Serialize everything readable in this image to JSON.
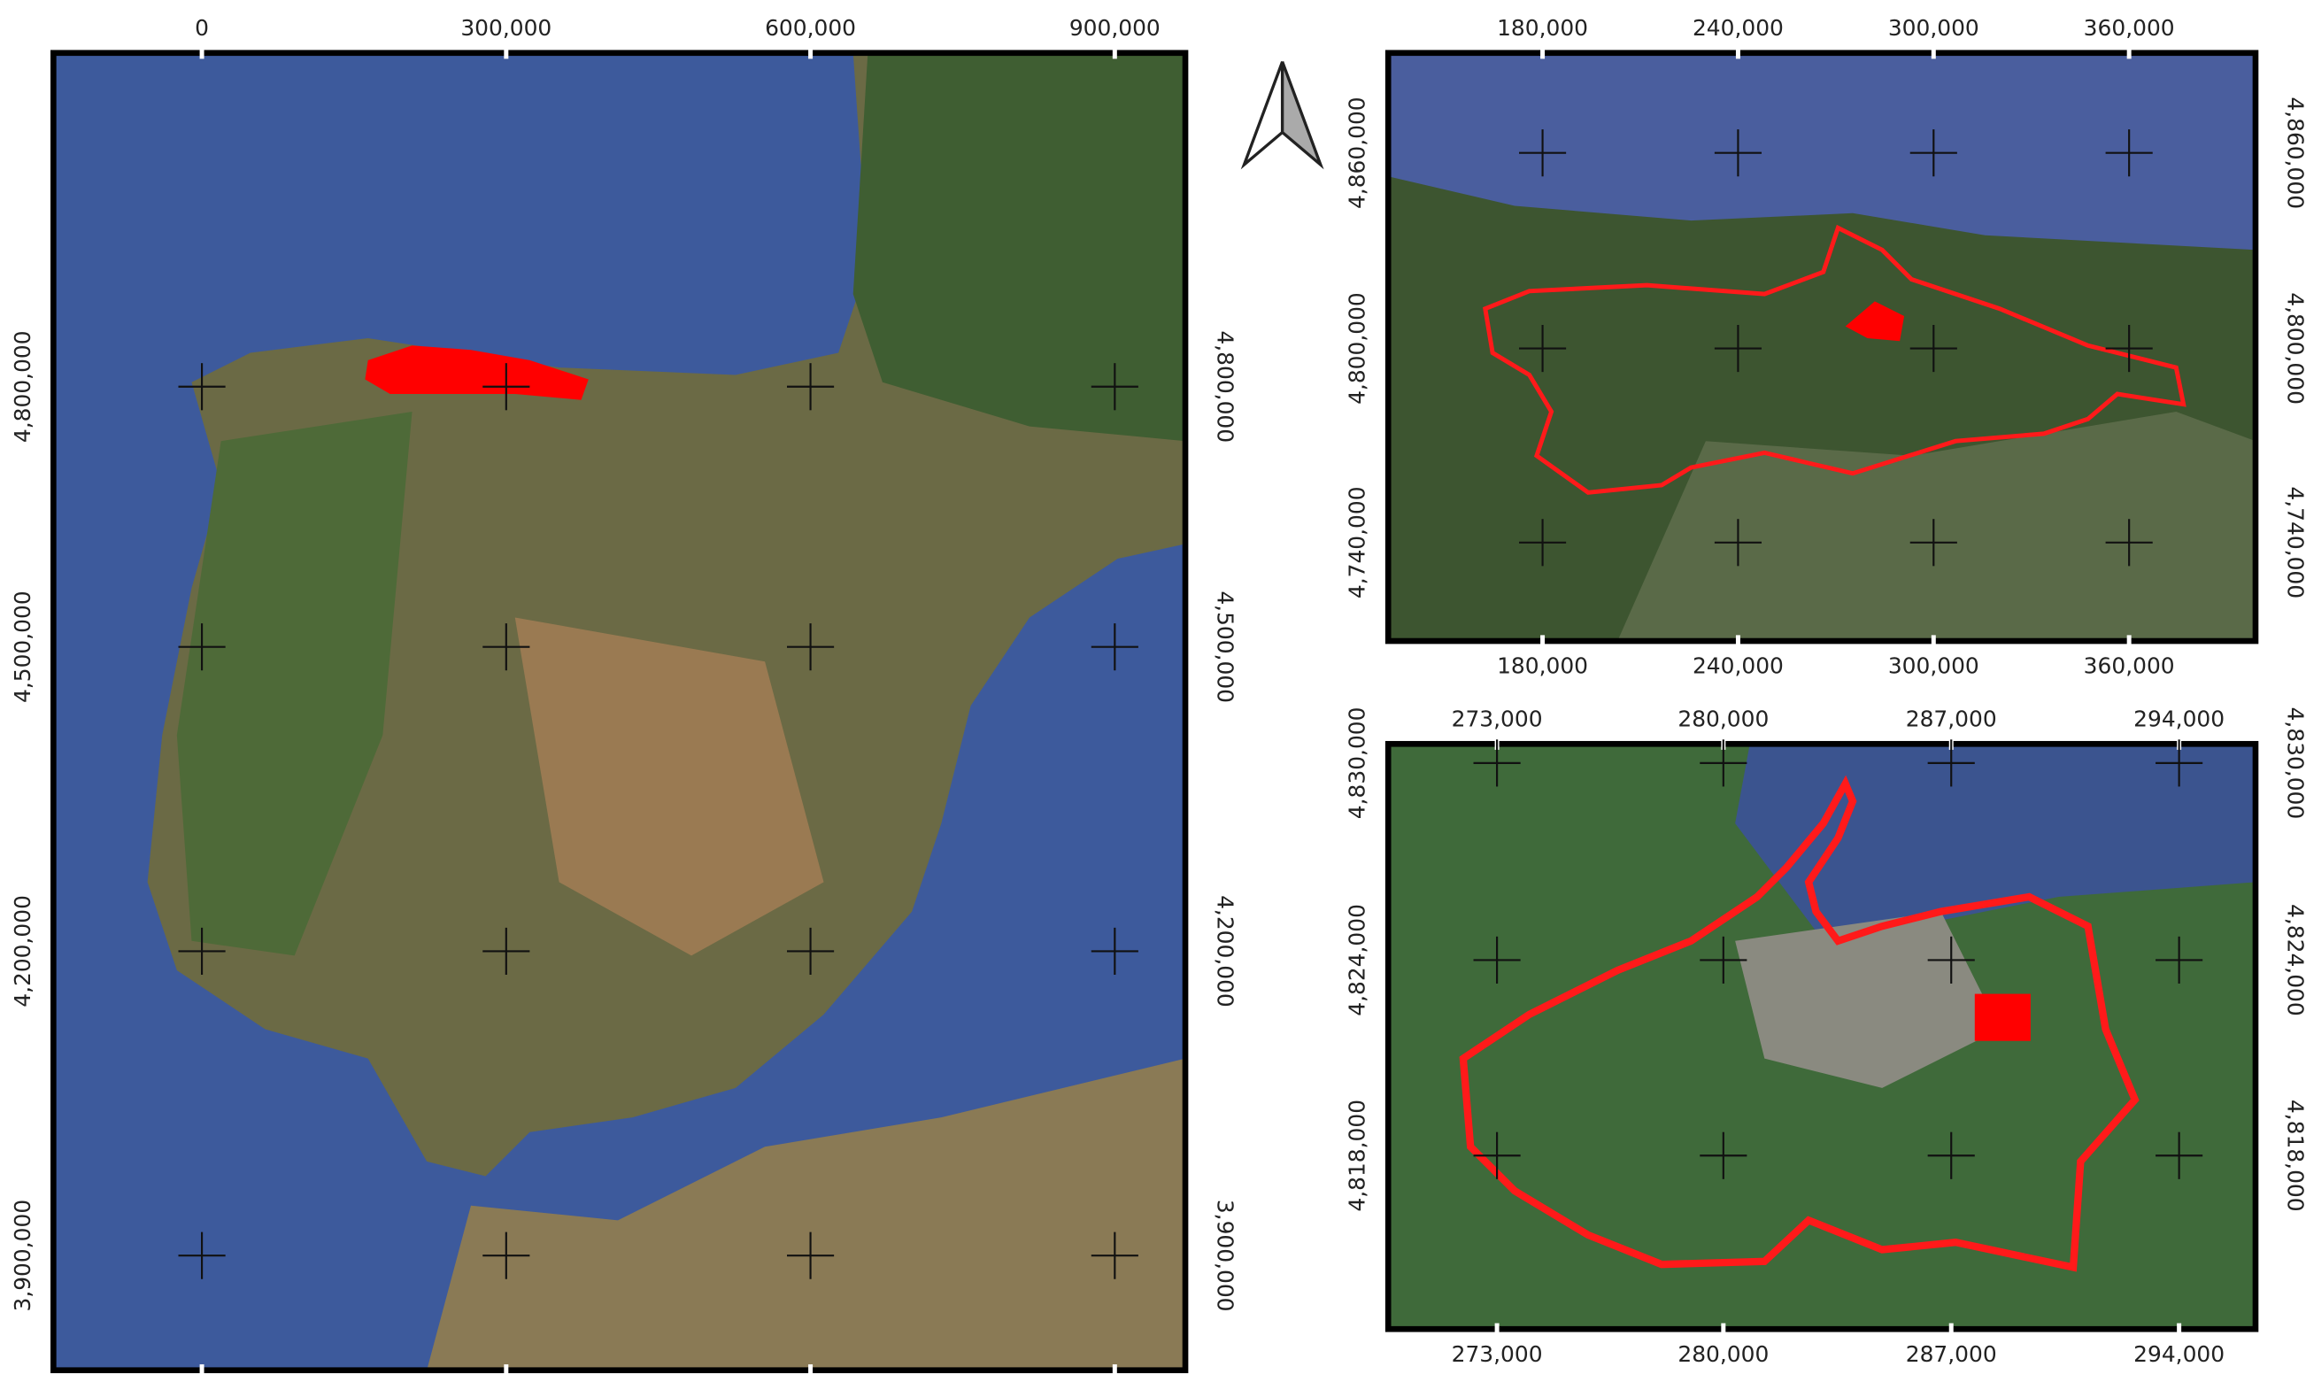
{
  "panels": [
    {
      "xticks": [
        "0",
        "300,000",
        "600,000",
        "900,000"
      ],
      "yticks": [
        "4,800,000",
        "4,500,000",
        "4,200,000",
        "3,900,000"
      ]
    },
    {
      "xticks": [
        "180,000",
        "240,000",
        "300,000",
        "360,000"
      ],
      "yticks": [
        "4,860,000",
        "4,800,000",
        "4,740,000"
      ]
    },
    {
      "xticks": [
        "273,000",
        "280,000",
        "287,000",
        "294,000"
      ],
      "yticks": [
        "4,830,000",
        "4,824,000",
        "4,818,000"
      ]
    }
  ]
}
